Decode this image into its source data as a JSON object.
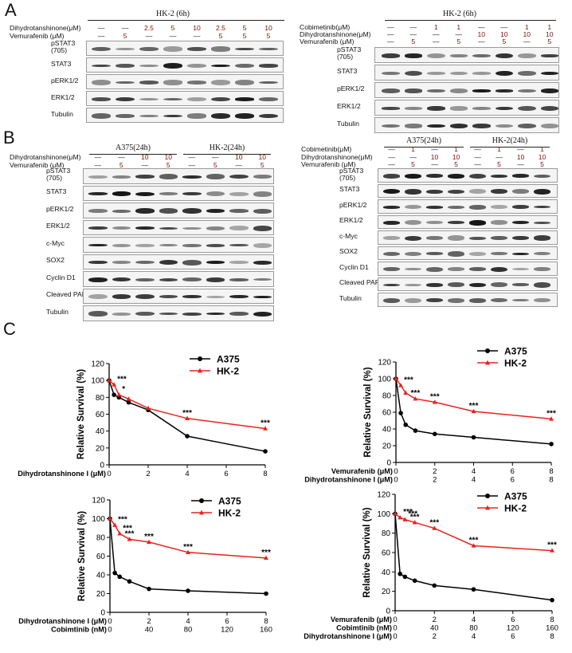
{
  "panels": {
    "A": {
      "letter": "A",
      "left": {
        "title": "HK-2 (6h)",
        "rows": [
          {
            "label": "Dihydrotanshinone(μM)",
            "values": [
              "—",
              "—",
              "2.5",
              "5",
              "10",
              "2.5",
              "5",
              "10"
            ]
          },
          {
            "label": "Vemurafenib (μM)",
            "values": [
              "—",
              "5",
              "—",
              "—",
              "—",
              "5",
              "5",
              "5"
            ]
          }
        ],
        "blots": [
          "pSTAT3\n(705)",
          "STAT3",
          "pERK1/2",
          "ERK1/2",
          "Tubulin"
        ]
      },
      "right": {
        "title": "HK-2 (6h)",
        "rows": [
          {
            "label": "Cobimetinib(μM)",
            "values": [
              "—",
              "—",
              "1",
              "1",
              "—",
              "—",
              "1",
              "1"
            ]
          },
          {
            "label": "Dihydrotanshinone(μM)",
            "values": [
              "—",
              "—",
              "—",
              "—",
              "10",
              "10",
              "10",
              "10"
            ]
          },
          {
            "label": "Vemurafenib (μM)",
            "values": [
              "—",
              "5",
              "—",
              "5",
              "—",
              "5",
              "—",
              "5"
            ]
          }
        ],
        "blots": [
          "pSTAT3\n(705)",
          "STAT3",
          "pERK1/2",
          "ERK1/2",
          "Tubulin"
        ]
      }
    },
    "B": {
      "letter": "B",
      "left": {
        "groups": [
          "A375(24h)",
          "HK-2(24h)"
        ],
        "rows": [
          {
            "label": "Dihydrotanshinone(μM)",
            "values": [
              "—",
              "—",
              "10",
              "10",
              "—",
              "—",
              "10",
              "10"
            ]
          },
          {
            "label": "Vemurafenib (μM)",
            "values": [
              "—",
              "5",
              "—",
              "5",
              "—",
              "5",
              "—",
              "5"
            ]
          }
        ],
        "blots": [
          "pSTAT3\n(705)",
          "STAT3",
          "pERK1/2",
          "ERK1/2",
          "c-Myc",
          "SOX2",
          "Cyclin D1",
          "Cleaved PARP",
          "Tubulin"
        ]
      },
      "right": {
        "groups": [
          "A375(24h)",
          "HK-2(24h)"
        ],
        "rows": [
          {
            "label": "Cobimetinib(μM)",
            "values": [
              "—",
              "1",
              "—",
              "1",
              "—",
              "1",
              "—",
              "1"
            ]
          },
          {
            "label": "Dihydrotanshinone(μM)",
            "values": [
              "—",
              "—",
              "10",
              "10",
              "—",
              "—",
              "10",
              "10"
            ]
          },
          {
            "label": "Vemurafenib (μM)",
            "values": [
              "—",
              "5",
              "—",
              "5",
              "—",
              "5",
              "—",
              "5"
            ]
          }
        ],
        "blots": [
          "pSTAT3\n(705)",
          "STAT3",
          "pERK1/2",
          "ERK1/2",
          "c-Myc",
          "SOX2",
          "Cyclin D1",
          "Cleaved PARP",
          "Tubulin"
        ]
      }
    },
    "C": {
      "letter": "C"
    }
  },
  "chart_data": [
    {
      "type": "line",
      "ylabel": "Relative Survival  (%)",
      "x_rows": [
        {
          "label": "Dihydrotanshinone I  (μM)",
          "ticks": [
            "0",
            "2",
            "4",
            "6",
            "8"
          ]
        }
      ],
      "xlim": [
        0,
        8
      ],
      "ylim": [
        0,
        120
      ],
      "yticks": [
        0,
        20,
        40,
        60,
        80,
        100,
        120
      ],
      "series": [
        {
          "name": "A375",
          "color": "#000000",
          "x": [
            0,
            0.25,
            0.5,
            1,
            2,
            4,
            8
          ],
          "values": [
            100,
            83,
            80,
            74,
            65,
            34,
            16
          ]
        },
        {
          "name": "HK-2",
          "color": "#e8231e",
          "x": [
            0,
            0.25,
            0.5,
            1,
            2,
            4,
            8
          ],
          "values": [
            100,
            95,
            83,
            78,
            67,
            55,
            43
          ]
        }
      ],
      "annotations": [
        {
          "x": 0.25,
          "y": 95,
          "text": "***"
        },
        {
          "x": 0.5,
          "y": 83,
          "text": "*"
        },
        {
          "x": 4,
          "y": 55,
          "text": "***"
        },
        {
          "x": 8,
          "y": 43,
          "text": "***"
        }
      ],
      "legend": "top-right"
    },
    {
      "type": "line",
      "ylabel": "Relative Survival  (%)",
      "x_rows": [
        {
          "label": "Vemurafenib  (μM)",
          "ticks": [
            "0",
            "2",
            "4",
            "6",
            "8"
          ]
        },
        {
          "label": "Dihydrotanshinone I  (μM)",
          "ticks": [
            "0",
            "2",
            "4",
            "6",
            "8"
          ]
        }
      ],
      "xlim": [
        0,
        8
      ],
      "ylim": [
        0,
        120
      ],
      "yticks": [
        0,
        20,
        40,
        60,
        80,
        100,
        120
      ],
      "series": [
        {
          "name": "A375",
          "color": "#000000",
          "x": [
            0,
            0.25,
            0.5,
            1,
            2,
            4,
            8
          ],
          "values": [
            100,
            59,
            45,
            38,
            34,
            30,
            22
          ]
        },
        {
          "name": "HK-2",
          "color": "#e8231e",
          "x": [
            0,
            0.25,
            0.5,
            1,
            2,
            4,
            8
          ],
          "values": [
            100,
            92,
            83,
            76,
            72,
            61,
            52
          ]
        }
      ],
      "annotations": [
        {
          "x": 0.25,
          "y": 92,
          "text": "***"
        },
        {
          "x": 1,
          "y": 76,
          "text": "***"
        },
        {
          "x": 2,
          "y": 72,
          "text": "***"
        },
        {
          "x": 4,
          "y": 61,
          "text": "***"
        },
        {
          "x": 8,
          "y": 52,
          "text": "***"
        }
      ],
      "legend": "top-right"
    },
    {
      "type": "line",
      "ylabel": "Relative Survival  (%)",
      "x_rows": [
        {
          "label": "Dihydrotanshinone I  (μM)",
          "ticks": [
            "0",
            "2",
            "4",
            "6",
            "8"
          ]
        },
        {
          "label": "Cobimtinib          (nM)",
          "ticks": [
            "0",
            "40",
            "80",
            "120",
            "160"
          ]
        }
      ],
      "xlim": [
        0,
        8
      ],
      "ylim": [
        0,
        120
      ],
      "yticks": [
        0,
        20,
        40,
        60,
        80,
        100,
        120
      ],
      "series": [
        {
          "name": "A375",
          "color": "#000000",
          "x": [
            0,
            0.25,
            0.5,
            1,
            2,
            4,
            8
          ],
          "values": [
            100,
            42,
            38,
            33,
            25,
            23,
            20
          ]
        },
        {
          "name": "HK-2",
          "color": "#e8231e",
          "x": [
            0,
            0.25,
            0.5,
            1,
            2,
            4,
            8
          ],
          "values": [
            100,
            93,
            84,
            78,
            75,
            64,
            58
          ]
        }
      ],
      "annotations": [
        {
          "x": 0.25,
          "y": 93,
          "text": "***"
        },
        {
          "x": 0.5,
          "y": 84,
          "text": "***"
        },
        {
          "x": 1,
          "y": 78,
          "text": "***"
        },
        {
          "x": 2,
          "y": 75,
          "text": "***"
        },
        {
          "x": 4,
          "y": 64,
          "text": "***"
        },
        {
          "x": 8,
          "y": 58,
          "text": "***"
        }
      ],
      "legend": "top-right"
    },
    {
      "type": "line",
      "ylabel": "Relative Survival  (%)",
      "x_rows": [
        {
          "label": "Vemurafenib      (μM)",
          "ticks": [
            "0",
            "2",
            "4",
            "6",
            "8"
          ]
        },
        {
          "label": "Cobimtinib        (nM)",
          "ticks": [
            "0",
            "40",
            "80",
            "120",
            "160"
          ]
        },
        {
          "label": "Dihydrotanshinone I  (μM)",
          "ticks": [
            "0",
            "2",
            "4",
            "6",
            "8"
          ]
        }
      ],
      "xlim": [
        0,
        8
      ],
      "ylim": [
        0,
        120
      ],
      "yticks": [
        0,
        20,
        40,
        60,
        80,
        100,
        120
      ],
      "series": [
        {
          "name": "A375",
          "color": "#000000",
          "x": [
            0,
            0.25,
            0.5,
            1,
            2,
            4,
            8
          ],
          "values": [
            100,
            38,
            35,
            31,
            26,
            22,
            11
          ]
        },
        {
          "name": "HK-2",
          "color": "#e8231e",
          "x": [
            0,
            0.25,
            0.5,
            1,
            2,
            4,
            8
          ],
          "values": [
            100,
            96,
            94,
            91,
            85,
            67,
            62
          ]
        }
      ],
      "annotations": [
        {
          "x": 0.25,
          "y": 96,
          "text": "***"
        },
        {
          "x": 0.5,
          "y": 94,
          "text": "***"
        },
        {
          "x": 1,
          "y": 91,
          "text": "***"
        },
        {
          "x": 2,
          "y": 85,
          "text": "***"
        },
        {
          "x": 4,
          "y": 67,
          "text": "***"
        },
        {
          "x": 8,
          "y": 62,
          "text": "***"
        }
      ],
      "legend": "top-right"
    }
  ]
}
